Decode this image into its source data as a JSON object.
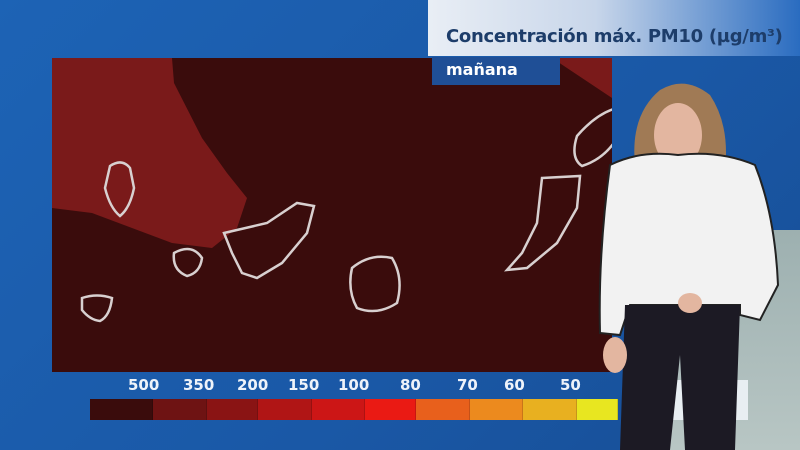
{
  "header": {
    "title": "Concentración máx. PM10 (µg/m³)",
    "subtitle": "mañana"
  },
  "map": {
    "region": "Canary Islands",
    "background_color": "#3a0c0c",
    "plume_color": "#7a1a1a"
  },
  "legend": {
    "labels": [
      "500",
      "350",
      "200",
      "150",
      "100",
      "80",
      "70",
      "60",
      "50"
    ],
    "colors": [
      "#3a0c0c",
      "#6e1313",
      "#8a1414",
      "#b01515",
      "#cc1616",
      "#ea1a14",
      "#e8601c",
      "#ec8a1e",
      "#e8b020",
      "#e8e620"
    ]
  }
}
